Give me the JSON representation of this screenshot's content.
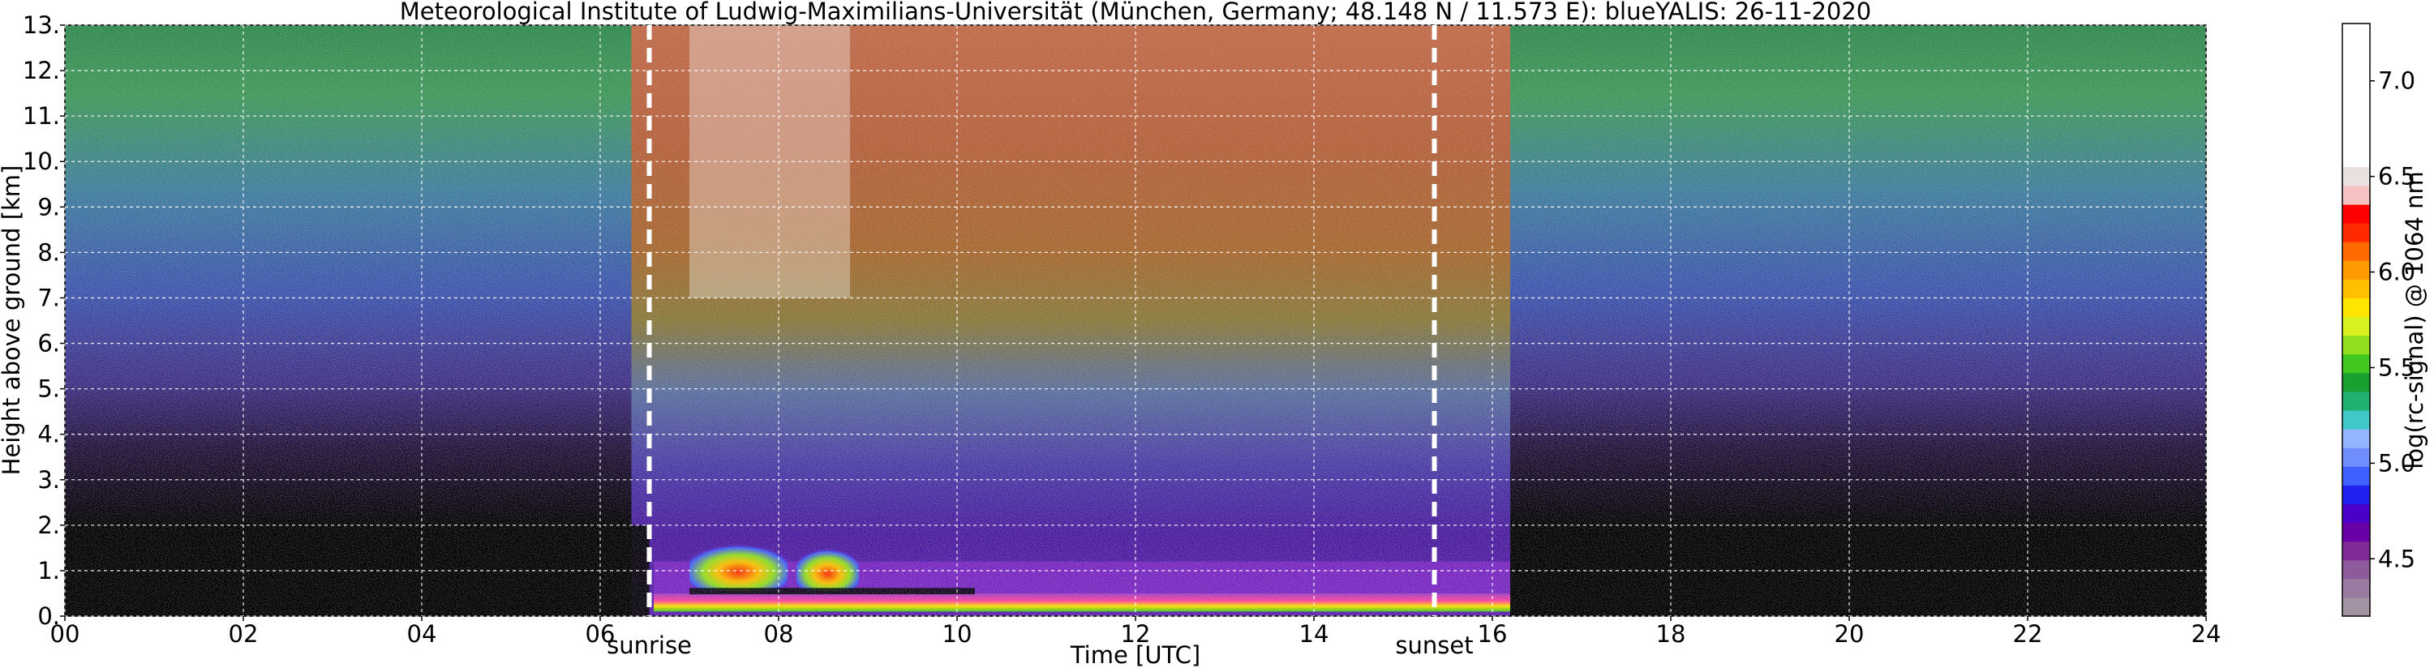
{
  "chart_data": {
    "type": "heatmap",
    "title": "Meteorological Institute of Ludwig-Maximilians-Universität (München, Germany; 48.148 N / 11.573 E):     blueYALIS: 26-11-2020",
    "xlabel": "Time [UTC]",
    "ylabel": "Height above ground [km]",
    "xlim": [
      0,
      24
    ],
    "ylim": [
      0,
      13
    ],
    "x_ticks": [
      "00",
      "02",
      "04",
      "06",
      "08",
      "10",
      "12",
      "14",
      "16",
      "18",
      "20",
      "22",
      "24"
    ],
    "y_ticks": [
      "0.",
      "1.",
      "2.",
      "3.",
      "4.",
      "5.",
      "6.",
      "7.",
      "8.",
      "9.",
      "10.",
      "11.",
      "12.",
      "13."
    ],
    "grid": true,
    "annotations": [
      {
        "text": "sunrise",
        "x": 6.55
      },
      {
        "text": "sunset",
        "x": 15.35
      }
    ],
    "colorbar": {
      "label": "log(rc-signal) @ 1064 nm",
      "ticks": [
        "4.5",
        "5.0",
        "5.5",
        "6.0",
        "6.5",
        "7.0"
      ],
      "range": [
        4.2,
        7.3
      ],
      "palette": [
        "#a493a3",
        "#9a7aa0",
        "#8f5a9c",
        "#7f2a98",
        "#6a00a8",
        "#4a00c8",
        "#2020f0",
        "#4060ff",
        "#6f8fff",
        "#93b4ff",
        "#40c8c8",
        "#20b070",
        "#18a030",
        "#40c820",
        "#90e020",
        "#d8f020",
        "#ffe600",
        "#ffc000",
        "#ff9a00",
        "#ff6a00",
        "#ff2a00",
        "#ff0000",
        "#f4c2c2",
        "#ebe0e0",
        "#ffffff"
      ]
    },
    "features": {
      "night_dark_below_km": 2.0,
      "day_boundary_layer": {
        "x_range": [
          6.6,
          16.2
        ],
        "y_range_km": [
          0.1,
          0.5
        ]
      },
      "clouds": [
        {
          "x_range": [
            7.0,
            8.1
          ],
          "y_range_km": [
            0.55,
            1.6
          ]
        },
        {
          "x_range": [
            8.2,
            8.9
          ],
          "y_range_km": [
            0.55,
            1.5
          ]
        }
      ]
    }
  }
}
